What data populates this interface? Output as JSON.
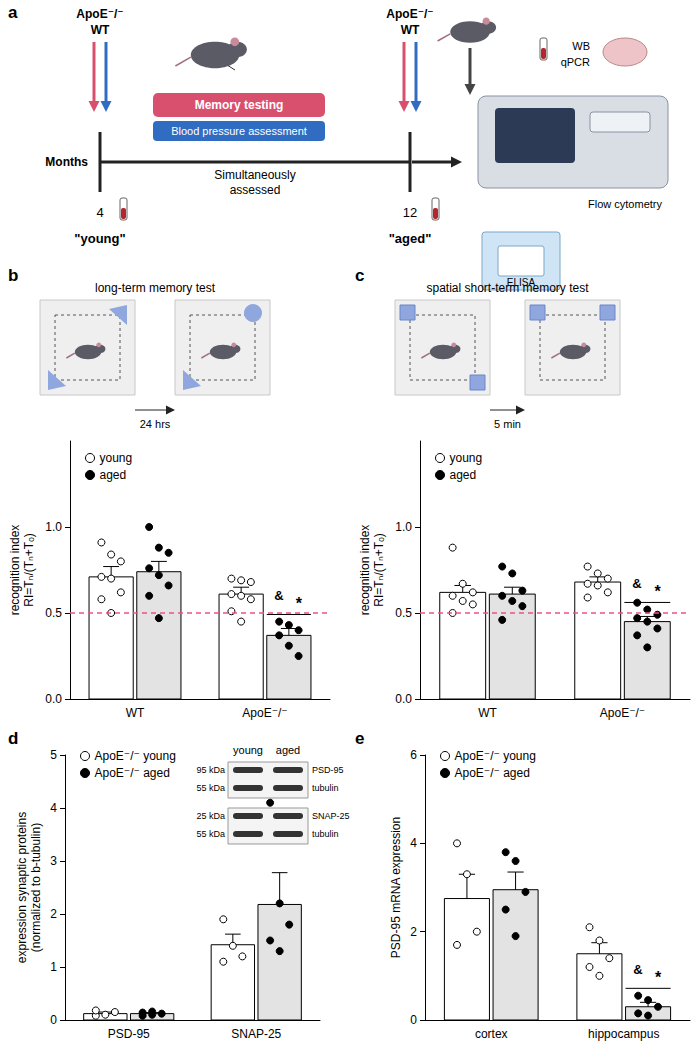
{
  "panel_a": {
    "label": "a",
    "left_groups": [
      "ApoE⁻/⁻",
      "WT"
    ],
    "right_groups": [
      "ApoE⁻/⁻",
      "WT"
    ],
    "boxes": [
      "Memory testing",
      "Blood pressure assessment"
    ],
    "axis_label": "Months",
    "middle_text": "Simultaneously\nassessed",
    "time_points": [
      {
        "month": "4",
        "label": "\"young\""
      },
      {
        "month": "12",
        "label": "\"aged\""
      }
    ],
    "readouts": [
      "WB",
      "qPCR",
      "Flow cytometry",
      "ELISA"
    ]
  },
  "chart_data": [
    {
      "panel": "b",
      "type": "bar",
      "title": "long-term memory test",
      "interval_label": "24 hrs",
      "categories": [
        "WT",
        "ApoE⁻/⁻"
      ],
      "y_label": "recognition index\nRI=Tₙ/(Tₙ+Tₒ)",
      "ylim": [
        0,
        1.5
      ],
      "yticks": [
        {
          "value": 0,
          "label": "0.0"
        },
        {
          "value": 0.5,
          "label": "0.5"
        },
        {
          "value": 1,
          "label": "1.0"
        }
      ],
      "reference_line": 0.5,
      "grid": false,
      "legend": "upper left",
      "series": [
        {
          "name": "young",
          "color": "#ffffff",
          "marker": "open circle",
          "values": [
            0.71,
            0.61
          ],
          "errors": [
            0.06,
            0.04
          ],
          "points": [
            [
              0.91,
              0.84,
              0.8,
              0.71,
              0.7,
              0.62,
              0.58,
              0.5
            ],
            [
              0.7,
              0.69,
              0.68,
              0.61,
              0.6,
              0.58,
              0.51,
              0.45
            ]
          ]
        },
        {
          "name": "aged",
          "color": "#e3e3e3",
          "marker": "filled circle",
          "values": [
            0.74,
            0.37
          ],
          "errors": [
            0.06,
            0.04
          ],
          "points": [
            [
              1.0,
              0.88,
              0.85,
              0.76,
              0.72,
              0.66,
              0.6,
              0.47
            ],
            [
              0.45,
              0.43,
              0.4,
              0.37,
              0.31,
              0.25
            ]
          ]
        }
      ],
      "annotations": [
        {
          "category": "ApoE⁻/⁻",
          "series": "aged",
          "texts": [
            "&",
            "*"
          ]
        }
      ]
    },
    {
      "panel": "c",
      "type": "bar",
      "title": "spatial short-term memory test",
      "interval_label": "5 min",
      "categories": [
        "WT",
        "ApoE⁻/⁻"
      ],
      "y_label": "recognition index\nRI=Tₙ/(Tₙ+Tₒ)",
      "ylim": [
        0,
        1.5
      ],
      "yticks": [
        {
          "value": 0,
          "label": "0.0"
        },
        {
          "value": 0.5,
          "label": "0.5"
        },
        {
          "value": 1,
          "label": "1.0"
        }
      ],
      "reference_line": 0.5,
      "grid": false,
      "legend": "upper left",
      "series": [
        {
          "name": "young",
          "color": "#ffffff",
          "marker": "open circle",
          "values": [
            0.62,
            0.68
          ],
          "errors": [
            0.04,
            0.03
          ],
          "points": [
            [
              0.88,
              0.67,
              0.62,
              0.6,
              0.57,
              0.55,
              0.5
            ],
            [
              0.77,
              0.73,
              0.7,
              0.67,
              0.66,
              0.62,
              0.59
            ]
          ]
        },
        {
          "name": "aged",
          "color": "#e3e3e3",
          "marker": "filled circle",
          "values": [
            0.61,
            0.45
          ],
          "errors": [
            0.04,
            0.03
          ],
          "points": [
            [
              0.77,
              0.73,
              0.63,
              0.6,
              0.57,
              0.54,
              0.46
            ],
            [
              0.56,
              0.52,
              0.49,
              0.47,
              0.45,
              0.41,
              0.37,
              0.3
            ]
          ]
        }
      ],
      "annotations": [
        {
          "category": "ApoE⁻/⁻",
          "series": "aged",
          "texts": [
            "&",
            "*"
          ]
        }
      ]
    },
    {
      "panel": "d",
      "type": "bar",
      "categories": [
        "PSD-95",
        "SNAP-25"
      ],
      "y_label": "expression synaptic proteins\n(normalized to b-tubulin)",
      "ylim": [
        0,
        5
      ],
      "yticks": [
        0,
        1,
        2,
        3,
        4,
        5
      ],
      "grid": false,
      "legend": "upper left",
      "series": [
        {
          "name": "ApoE⁻/⁻ young",
          "color": "#ffffff",
          "marker": "open circle",
          "values": [
            0.12,
            1.42
          ],
          "errors": [
            0.03,
            0.2
          ],
          "points": [
            [
              0.08,
              0.1,
              0.15,
              0.18
            ],
            [
              1.9,
              1.4,
              1.2,
              1.1
            ]
          ]
        },
        {
          "name": "ApoE⁻/⁻ aged",
          "color": "#e3e3e3",
          "marker": "filled circle",
          "values": [
            0.12,
            2.18
          ],
          "errors": [
            0.02,
            0.6
          ],
          "points": [
            [
              0.08,
              0.1,
              0.12,
              0.14,
              0.16
            ],
            [
              4.1,
              2.2,
              1.8,
              1.5,
              1.3
            ]
          ]
        }
      ],
      "inset": {
        "columns": [
          "young",
          "aged"
        ],
        "rows": [
          {
            "size": "95 kDa",
            "name": "PSD-95"
          },
          {
            "size": "55 kDa",
            "name": "tubulin"
          },
          {
            "size": "25 kDa",
            "name": "SNAP-25"
          },
          {
            "size": "55 kDa",
            "name": "tubulin"
          }
        ]
      }
    },
    {
      "panel": "e",
      "type": "bar",
      "categories": [
        "cortex",
        "hippocampus"
      ],
      "y_label": "PSD-95 mRNA expression",
      "ylim": [
        0,
        6
      ],
      "yticks": [
        0,
        2,
        4,
        6
      ],
      "grid": false,
      "legend": "upper left",
      "series": [
        {
          "name": "ApoE⁻/⁻ young",
          "color": "#ffffff",
          "marker": "open circle",
          "values": [
            2.75,
            1.5
          ],
          "errors": [
            0.55,
            0.25
          ],
          "points": [
            [
              4.0,
              3.3,
              2.0,
              1.7
            ],
            [
              2.1,
              1.8,
              1.4,
              1.2,
              1.0
            ]
          ]
        },
        {
          "name": "ApoE⁻/⁻ aged",
          "color": "#e3e3e3",
          "marker": "filled circle",
          "values": [
            2.95,
            0.3
          ],
          "errors": [
            0.4,
            0.1
          ],
          "points": [
            [
              3.8,
              3.6,
              2.9,
              2.5,
              1.9
            ],
            [
              0.55,
              0.45,
              0.3,
              0.15,
              0.1
            ]
          ]
        }
      ],
      "annotations": [
        {
          "category": "hippocampus",
          "series": "ApoE⁻/⁻ aged",
          "texts": [
            "&",
            "*"
          ]
        }
      ]
    }
  ]
}
